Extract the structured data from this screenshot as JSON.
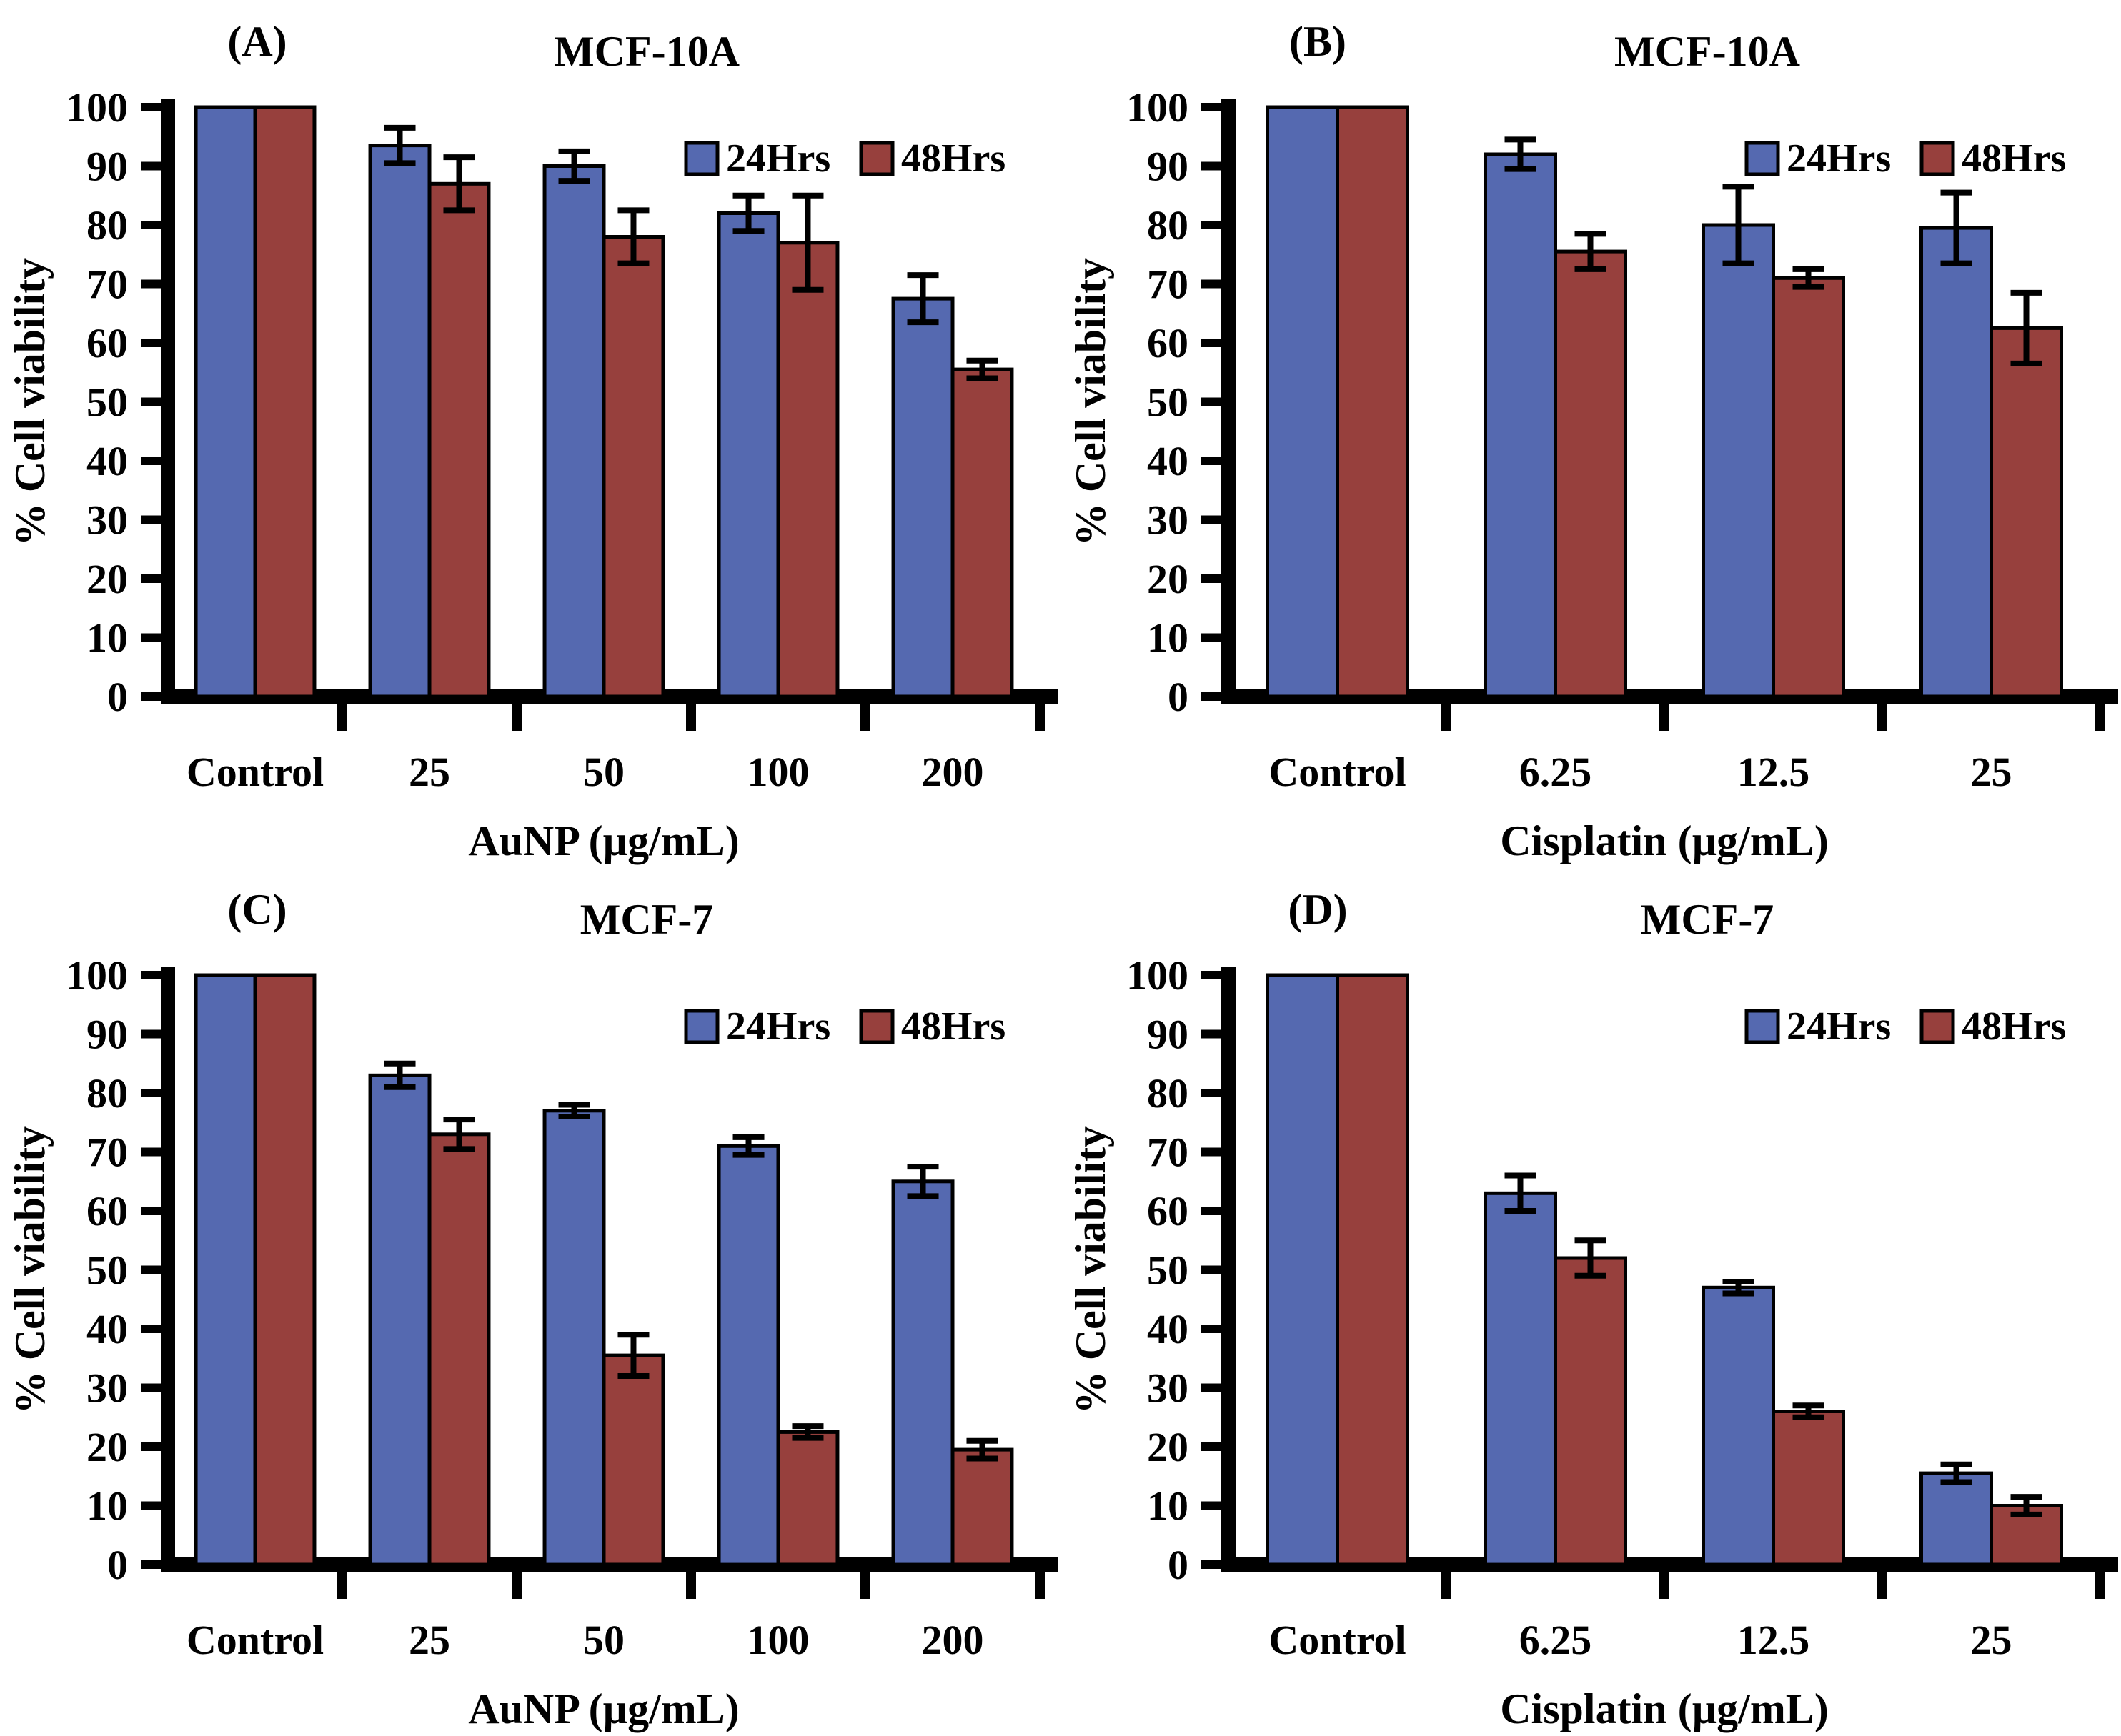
{
  "figure": {
    "ylabel": "% Cell viability",
    "legend": [
      "24Hrs",
      "48Hrs"
    ],
    "colors": {
      "series24": "#5569b0",
      "series48": "#97403d",
      "axis": "#000000",
      "background": "#ffffff"
    }
  },
  "chart_data": [
    {
      "panel": "(A)",
      "type": "bar",
      "title": "MCF-10A",
      "xlabel": "AuNP (µg/mL)",
      "ylabel": "% Cell viability",
      "ylim": [
        0,
        100
      ],
      "ytick_step": 10,
      "grid": false,
      "legend_position": "top-right-inside",
      "categories": [
        "Control",
        "25",
        "50",
        "100",
        "200"
      ],
      "series": [
        {
          "name": "24Hrs",
          "values": [
            100,
            93.5,
            90,
            82,
            67.5
          ],
          "errors": [
            0,
            3,
            2.5,
            3,
            4
          ]
        },
        {
          "name": "48Hrs",
          "values": [
            100,
            87,
            78,
            77,
            55.5
          ],
          "errors": [
            0,
            4.5,
            4.5,
            8,
            1.5
          ]
        }
      ]
    },
    {
      "panel": "(B)",
      "type": "bar",
      "title": "MCF-10A",
      "xlabel": "Cisplatin (µg/mL)",
      "ylabel": "% Cell viability",
      "ylim": [
        0,
        100
      ],
      "ytick_step": 10,
      "grid": false,
      "legend_position": "top-right-inside",
      "categories": [
        "Control",
        "6.25",
        "12.5",
        "25"
      ],
      "series": [
        {
          "name": "24Hrs",
          "values": [
            100,
            92,
            80,
            79.5
          ],
          "errors": [
            0,
            2.5,
            6.5,
            6
          ]
        },
        {
          "name": "48Hrs",
          "values": [
            100,
            75.5,
            71,
            62.5
          ],
          "errors": [
            0,
            3,
            1.5,
            6
          ]
        }
      ]
    },
    {
      "panel": "(C)",
      "type": "bar",
      "title": "MCF-7",
      "xlabel": "AuNP (µg/mL)",
      "ylabel": "% Cell viability",
      "ylim": [
        0,
        100
      ],
      "ytick_step": 10,
      "grid": false,
      "legend_position": "top-right-inside",
      "categories": [
        "Control",
        "25",
        "50",
        "100",
        "200"
      ],
      "series": [
        {
          "name": "24Hrs",
          "values": [
            100,
            83,
            77,
            71,
            65
          ],
          "errors": [
            0,
            2,
            1,
            1.5,
            2.5
          ]
        },
        {
          "name": "48Hrs",
          "values": [
            100,
            73,
            35.5,
            22.5,
            19.5
          ],
          "errors": [
            0,
            2.5,
            3.5,
            1,
            1.5
          ]
        }
      ]
    },
    {
      "panel": "(D)",
      "type": "bar",
      "title": "MCF-7",
      "xlabel": "Cisplatin (µg/mL)",
      "ylabel": "% Cell viability",
      "ylim": [
        0,
        100
      ],
      "ytick_step": 10,
      "grid": false,
      "legend_position": "top-right-inside",
      "categories": [
        "Control",
        "6.25",
        "12.5",
        "25"
      ],
      "series": [
        {
          "name": "24Hrs",
          "values": [
            100,
            63,
            47,
            15.5
          ],
          "errors": [
            0,
            3,
            1,
            1.5
          ]
        },
        {
          "name": "48Hrs",
          "values": [
            100,
            52,
            26,
            10
          ],
          "errors": [
            0,
            3,
            1,
            1.5
          ]
        }
      ]
    }
  ]
}
